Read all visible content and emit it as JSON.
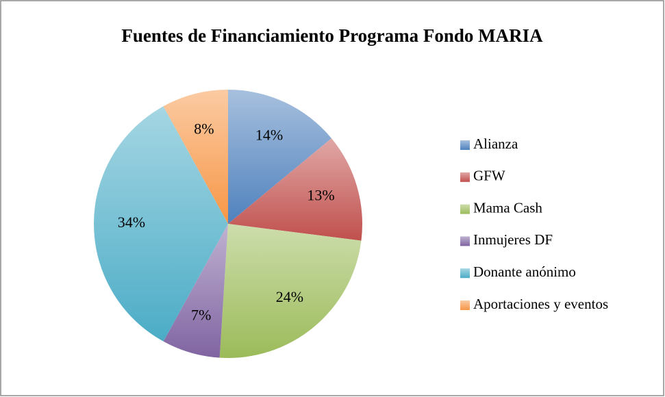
{
  "chart_data": {
    "type": "pie",
    "title": "Fuentes de Financiamiento Programa Fondo MARIA",
    "categories": [
      "Alianza",
      "GFW",
      "Mama Cash",
      "Inmujeres DF",
      "Donante anónimo",
      "Aportaciones y eventos"
    ],
    "values": [
      14,
      13,
      24,
      7,
      34,
      8
    ],
    "value_labels": [
      "14%",
      "13%",
      "24%",
      "7%",
      "34%",
      "8%"
    ],
    "colors": [
      "#4f81bd",
      "#c0504d",
      "#9bbb59",
      "#8064a2",
      "#4bacc6",
      "#f79646"
    ],
    "legend": "right"
  }
}
